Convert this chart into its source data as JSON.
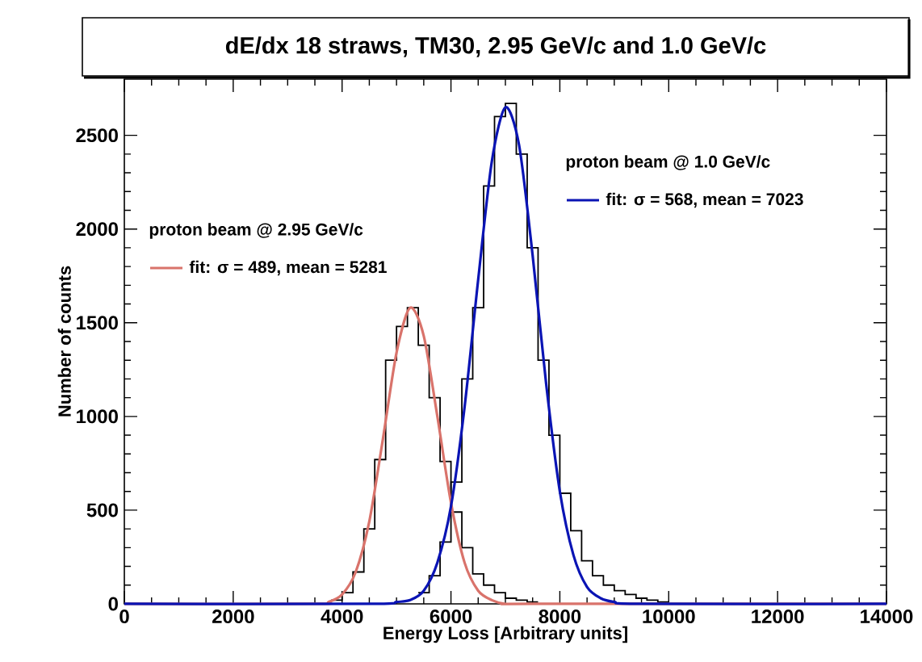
{
  "chart_data": {
    "type": "histogram",
    "title": "dE/dx 18 straws, TM30, 2.95 GeV/c and 1.0 GeV/c",
    "xlabel": "Energy Loss    [Arbitrary units]",
    "ylabel": "Number of counts",
    "xlim": [
      0,
      14000
    ],
    "ylim": [
      0,
      2800
    ],
    "xticks": [
      0,
      2000,
      4000,
      6000,
      8000,
      10000,
      12000,
      14000
    ],
    "yticks": [
      0,
      500,
      1000,
      1500,
      2000,
      2500
    ],
    "legend": "top",
    "grid": false,
    "annotations": [
      "proton beam @ 2.95 GeV/c",
      "proton beam @ 1.0 GeV/c"
    ],
    "series": [
      {
        "color": "#000000",
        "bins": [
          3800,
          4000,
          4200,
          4400,
          4600,
          4800,
          5000,
          5200,
          5400,
          5600,
          5800,
          6000,
          6200,
          6400,
          6600,
          6800,
          7000,
          7200,
          7400,
          7600
        ],
        "values": [
          20,
          60,
          170,
          400,
          770,
          1300,
          1480,
          1580,
          1380,
          1100,
          760,
          490,
          300,
          160,
          100,
          60,
          30,
          20,
          10
        ]
      },
      {
        "color": "#000000",
        "bins": [
          5400,
          5600,
          5800,
          6000,
          6200,
          6400,
          6600,
          6800,
          7000,
          7200,
          7400,
          7600,
          7800,
          8000,
          8200,
          8400,
          8600,
          8800,
          9000,
          9200,
          9400,
          9600,
          9800,
          10000
        ],
        "values": [
          60,
          150,
          330,
          650,
          1200,
          1580,
          2230,
          2600,
          2670,
          2400,
          1900,
          1300,
          900,
          590,
          390,
          230,
          150,
          100,
          70,
          50,
          30,
          20,
          10
        ]
      },
      {
        "type": "line",
        "name": "fit: σ = 489, mean = 5281",
        "color": "#d9736b",
        "x": [
          0,
          3500,
          3750,
          4000,
          4250,
          4500,
          4750,
          5000,
          5250,
          5500,
          5750,
          6000,
          6250,
          6500,
          6750,
          7000,
          7500,
          14000
        ],
        "values": [
          0,
          0,
          10,
          50,
          170,
          440,
          880,
          1340,
          1580,
          1430,
          1000,
          540,
          220,
          70,
          20,
          0,
          0,
          0
        ]
      },
      {
        "type": "line",
        "name": "fit: σ = 568, mean = 7023",
        "color": "#0a14b4",
        "x": [
          0,
          4500,
          5000,
          5250,
          5500,
          5750,
          6000,
          6250,
          6500,
          6750,
          7000,
          7250,
          7500,
          7750,
          8000,
          8250,
          8500,
          8750,
          9000,
          9500,
          14000
        ],
        "values": [
          0,
          0,
          10,
          20,
          70,
          220,
          520,
          1050,
          1730,
          2360,
          2650,
          2450,
          1860,
          1170,
          600,
          260,
          90,
          30,
          10,
          0,
          0
        ]
      }
    ]
  }
}
